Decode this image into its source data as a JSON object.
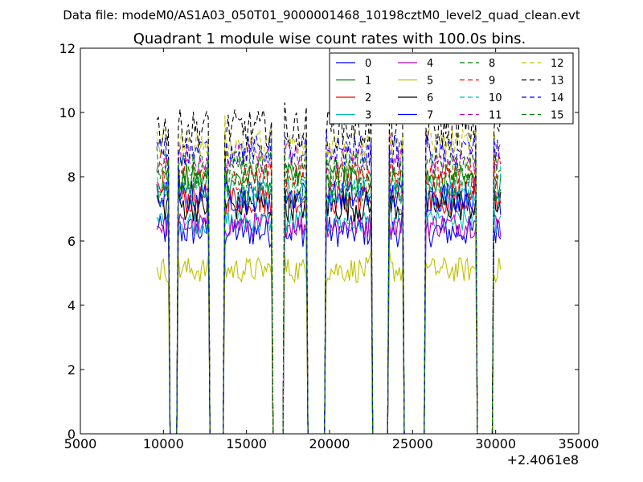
{
  "header": {
    "data_file": "Data file: modeM0/AS1A03_050T01_9000001468_10198cztM0_level2_quad_clean.evt"
  },
  "chart_data": {
    "type": "line",
    "title": "Quadrant 1 module wise count rates with 100.0s bins.",
    "xlabel": "",
    "ylabel": "",
    "x_offset_label": "+2.4061e8",
    "xlim": [
      5000,
      35000
    ],
    "ylim": [
      0,
      12
    ],
    "x_ticks": [
      5000,
      10000,
      15000,
      20000,
      25000,
      30000,
      35000
    ],
    "y_ticks": [
      0,
      2,
      4,
      6,
      8,
      10,
      12
    ],
    "grid": false,
    "legend_placement": "top-right",
    "legend_columns": 4,
    "segments": [
      [
        9600,
        10300
      ],
      [
        10900,
        12700
      ],
      [
        13700,
        16500
      ],
      [
        17300,
        18600
      ],
      [
        19800,
        22500
      ],
      [
        23600,
        24400
      ],
      [
        25800,
        28800
      ],
      [
        29900,
        30300
      ]
    ],
    "series": [
      {
        "name": "0",
        "color": "#0000ff",
        "dash": "solid",
        "level": 6.3,
        "jitter": 0.5
      },
      {
        "name": "1",
        "color": "#008000",
        "dash": "solid",
        "level": 7.9,
        "jitter": 0.5
      },
      {
        "name": "2",
        "color": "#ff0000",
        "dash": "solid",
        "level": 7.3,
        "jitter": 0.5
      },
      {
        "name": "3",
        "color": "#00bfbf",
        "dash": "solid",
        "level": 6.6,
        "jitter": 0.4
      },
      {
        "name": "4",
        "color": "#bf00bf",
        "dash": "solid",
        "level": 6.5,
        "jitter": 0.4
      },
      {
        "name": "5",
        "color": "#bfbf00",
        "dash": "solid",
        "level": 5.1,
        "jitter": 0.4
      },
      {
        "name": "6",
        "color": "#000000",
        "dash": "solid",
        "level": 7.1,
        "jitter": 0.5
      },
      {
        "name": "7",
        "color": "#0000ff",
        "dash": "solid",
        "level": 7.4,
        "jitter": 0.5
      },
      {
        "name": "8",
        "color": "#008000",
        "dash": "dashed",
        "level": 7.7,
        "jitter": 0.5
      },
      {
        "name": "9",
        "color": "#ff0000",
        "dash": "dashed",
        "level": 8.1,
        "jitter": 0.5
      },
      {
        "name": "10",
        "color": "#00bfbf",
        "dash": "dashed",
        "level": 7.5,
        "jitter": 0.5
      },
      {
        "name": "11",
        "color": "#bf00bf",
        "dash": "dashed",
        "level": 8.6,
        "jitter": 0.5
      },
      {
        "name": "12",
        "color": "#bfbf00",
        "dash": "dashed",
        "level": 9.0,
        "jitter": 0.5
      },
      {
        "name": "13",
        "color": "#000000",
        "dash": "dashed",
        "level": 9.5,
        "jitter": 0.6
      },
      {
        "name": "14",
        "color": "#0000ff",
        "dash": "dashed",
        "level": 8.8,
        "jitter": 0.5
      },
      {
        "name": "15",
        "color": "#008000",
        "dash": "dashed",
        "level": 8.3,
        "jitter": 0.5
      }
    ]
  }
}
